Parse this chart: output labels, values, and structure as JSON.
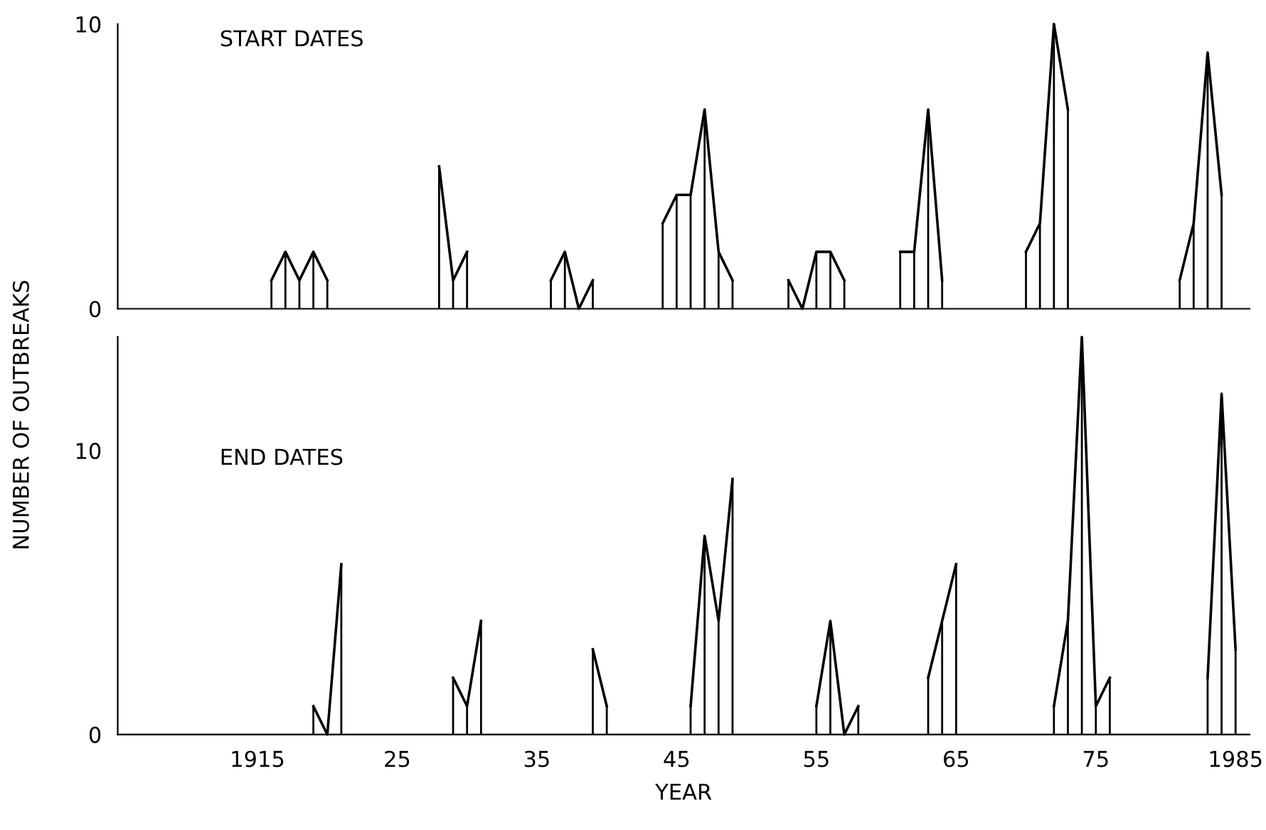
{
  "chart_data": [
    {
      "type": "line",
      "title": "START DATES",
      "ylabel": "NUMBER OF OUTBREAKS",
      "xlim": [
        1905,
        1986
      ],
      "ylim": [
        0,
        10
      ],
      "yticks": [
        0,
        10
      ],
      "tick_labels": "y",
      "grid": false,
      "legend": false,
      "marker": "none",
      "line_style": "solid",
      "series": [
        {
          "color": "#000000",
          "x": [
            1916,
            1917,
            1918,
            1919,
            1920,
            1921,
            1928,
            1929,
            1930,
            1931,
            1936,
            1937,
            1938,
            1939,
            1940,
            1944,
            1945,
            1946,
            1947,
            1948,
            1949,
            1950,
            1953,
            1954,
            1955,
            1956,
            1957,
            1958,
            1961,
            1962,
            1963,
            1964,
            1965,
            1970,
            1971,
            1972,
            1973,
            1974,
            1981,
            1982,
            1983,
            1984
          ],
          "values": [
            1,
            2,
            1,
            2,
            1,
            null,
            5,
            1,
            2,
            null,
            1,
            2,
            0,
            1,
            null,
            3,
            4,
            4,
            7,
            2,
            1,
            null,
            1,
            0,
            2,
            2,
            1,
            null,
            2,
            2,
            7,
            1,
            null,
            2,
            3,
            10,
            7,
            null,
            1,
            3,
            9,
            4
          ],
          "errors": [
            [
              0,
              1
            ],
            [
              0,
              2
            ],
            [
              0,
              1
            ],
            [
              0,
              2
            ],
            [
              0,
              1
            ],
            null,
            [
              0,
              5
            ],
            [
              0,
              1
            ],
            [
              0,
              2
            ],
            null,
            [
              0,
              1
            ],
            [
              0,
              2
            ],
            null,
            [
              0,
              1
            ],
            null,
            [
              0,
              3
            ],
            [
              0,
              4
            ],
            [
              0,
              4
            ],
            [
              0,
              7
            ],
            [
              0,
              2
            ],
            [
              0,
              1
            ],
            null,
            [
              0,
              1
            ],
            null,
            [
              0,
              2
            ],
            [
              0,
              2
            ],
            [
              0,
              1
            ],
            null,
            [
              0,
              2
            ],
            [
              0,
              2
            ],
            [
              0,
              7
            ],
            [
              0,
              1
            ],
            null,
            [
              0,
              2
            ],
            [
              0,
              3
            ],
            [
              0,
              10
            ],
            [
              0,
              7
            ],
            null,
            [
              0,
              1
            ],
            [
              0,
              3
            ],
            [
              0,
              9
            ],
            [
              0,
              4
            ]
          ]
        }
      ]
    },
    {
      "type": "line",
      "title": "END DATES",
      "xlabel": "YEAR",
      "xlim": [
        1905,
        1986
      ],
      "ylim": [
        0,
        14
      ],
      "yticks": [
        0,
        10
      ],
      "xticks": [
        1915,
        {
          "value": 1925,
          "label": "25"
        },
        {
          "value": 1935,
          "label": "35"
        },
        {
          "value": 1945,
          "label": "45"
        },
        {
          "value": 1955,
          "label": "55"
        },
        {
          "value": 1965,
          "label": "65"
        },
        {
          "value": 1975,
          "label": "75"
        },
        1985
      ],
      "grid": false,
      "legend": false,
      "marker": "none",
      "line_style": "solid",
      "series": [
        {
          "color": "#000000",
          "x": [
            1919,
            1920,
            1921,
            1922,
            1929,
            1930,
            1931,
            1932,
            1939,
            1940,
            1941,
            1946,
            1947,
            1948,
            1949,
            1950,
            1955,
            1956,
            1957,
            1958,
            1959,
            1963,
            1964,
            1965,
            1966,
            1972,
            1973,
            1974,
            1975,
            1976,
            1977,
            1983,
            1984,
            1985
          ],
          "values": [
            1,
            0,
            6,
            null,
            2,
            1,
            4,
            null,
            3,
            1,
            null,
            1,
            7,
            4,
            9,
            null,
            1,
            4,
            0,
            1,
            null,
            2,
            4,
            6,
            null,
            1,
            4,
            14,
            1,
            2,
            null,
            2,
            12,
            3
          ],
          "errors": [
            [
              0,
              1
            ],
            null,
            [
              0,
              6
            ],
            null,
            [
              0,
              2
            ],
            [
              0,
              1
            ],
            [
              0,
              4
            ],
            null,
            [
              0,
              3
            ],
            [
              0,
              1
            ],
            null,
            [
              0,
              1
            ],
            [
              0,
              7
            ],
            [
              0,
              4
            ],
            [
              0,
              9
            ],
            null,
            [
              0,
              1
            ],
            [
              0,
              4
            ],
            null,
            [
              0,
              1
            ],
            null,
            [
              0,
              2
            ],
            [
              0,
              4
            ],
            [
              0,
              6
            ],
            null,
            [
              0,
              1
            ],
            [
              0,
              4
            ],
            [
              0,
              14
            ],
            [
              0,
              1
            ],
            [
              0,
              2
            ],
            null,
            [
              0,
              2
            ],
            [
              0,
              12
            ],
            [
              0,
              3
            ]
          ]
        }
      ]
    }
  ]
}
